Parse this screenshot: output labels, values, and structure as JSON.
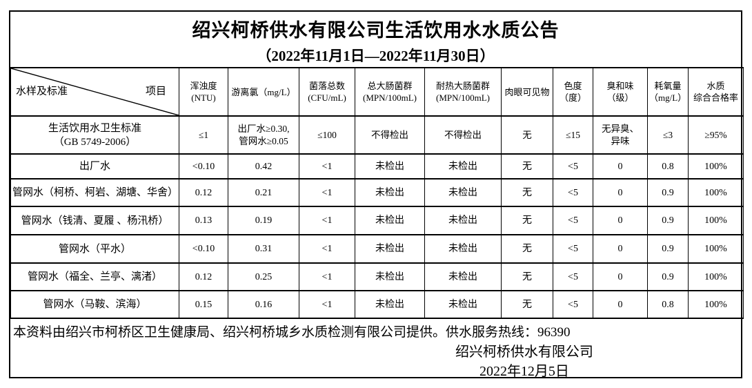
{
  "title": "绍兴柯桥供水有限公司生活饮用水水质公告",
  "subtitle": "（2022年11月1日—2022年11月30日）",
  "colors": {
    "text": "#000000",
    "background": "#ffffff",
    "border": "#000000"
  },
  "table": {
    "corner": {
      "bottom_left_label": "水样及标准",
      "top_right_label": "项目"
    },
    "column_headers": [
      [
        "浑浊度",
        "(NTU)"
      ],
      [
        "游离氯（mg/L）"
      ],
      [
        "菌落总数",
        "(CFU/mL)"
      ],
      [
        "总大肠菌群",
        "(MPN/100mL)"
      ],
      [
        "耐热大肠菌群",
        "(MPN/100mL)"
      ],
      [
        "肉眼可见物"
      ],
      [
        "色度",
        "（度）"
      ],
      [
        "臭和味",
        "（级）"
      ],
      [
        "耗氧量",
        "（mg/L）"
      ],
      [
        "水质",
        "综合合格率"
      ]
    ],
    "rows": [
      {
        "type": "standard",
        "label": [
          "生活饮用水卫生标准",
          "（GB 5749-2006）"
        ],
        "cells": [
          [
            "≤1"
          ],
          [
            "出厂水≥0.30,",
            "管网水≥0.05"
          ],
          [
            "≤100"
          ],
          [
            "不得检出"
          ],
          [
            "不得检出"
          ],
          [
            "无"
          ],
          [
            "≤15"
          ],
          [
            "无异臭、",
            "异味"
          ],
          [
            "≤3"
          ],
          [
            "≥95%"
          ]
        ]
      },
      {
        "type": "data",
        "label": [
          "出厂水"
        ],
        "cells": [
          "<0.10",
          "0.42",
          "<1",
          "未检出",
          "未检出",
          "无",
          "<5",
          "0",
          "0.8",
          "100%"
        ]
      },
      {
        "type": "data",
        "label": [
          "管网水（柯桥、柯岩、湖塘、华舍）"
        ],
        "cells": [
          "0.12",
          "0.21",
          "<1",
          "未检出",
          "未检出",
          "无",
          "<5",
          "0",
          "0.9",
          "100%"
        ]
      },
      {
        "type": "data",
        "label": [
          "管网水（钱清、夏履 、杨汛桥）"
        ],
        "cells": [
          "0.13",
          "0.19",
          "<1",
          "未检出",
          "未检出",
          "无",
          "<5",
          "0",
          "0.9",
          "100%"
        ]
      },
      {
        "type": "data",
        "label": [
          "管网水（平水）"
        ],
        "cells": [
          "<0.10",
          "0.31",
          "<1",
          "未检出",
          "未检出",
          "无",
          "<5",
          "0",
          "0.9",
          "100%"
        ]
      },
      {
        "type": "data",
        "label": [
          "管网水（福全、兰亭、漓渚）"
        ],
        "cells": [
          "0.12",
          "0.25",
          "<1",
          "未检出",
          "未检出",
          "无",
          "<5",
          "0",
          "0.9",
          "100%"
        ]
      },
      {
        "type": "data",
        "label": [
          "管网水（马鞍、滨海）"
        ],
        "cells": [
          "0.15",
          "0.16",
          "<1",
          "未检出",
          "未检出",
          "无",
          "<5",
          "0",
          "0.8",
          "100%"
        ]
      }
    ]
  },
  "footer": {
    "note": "本资料由绍兴市柯桥区卫生健康局、绍兴柯桥城乡水质检测有限公司提供。供水服务热线：96390",
    "signature": "绍兴柯桥供水有限公司",
    "date": "2022年12月5日"
  }
}
